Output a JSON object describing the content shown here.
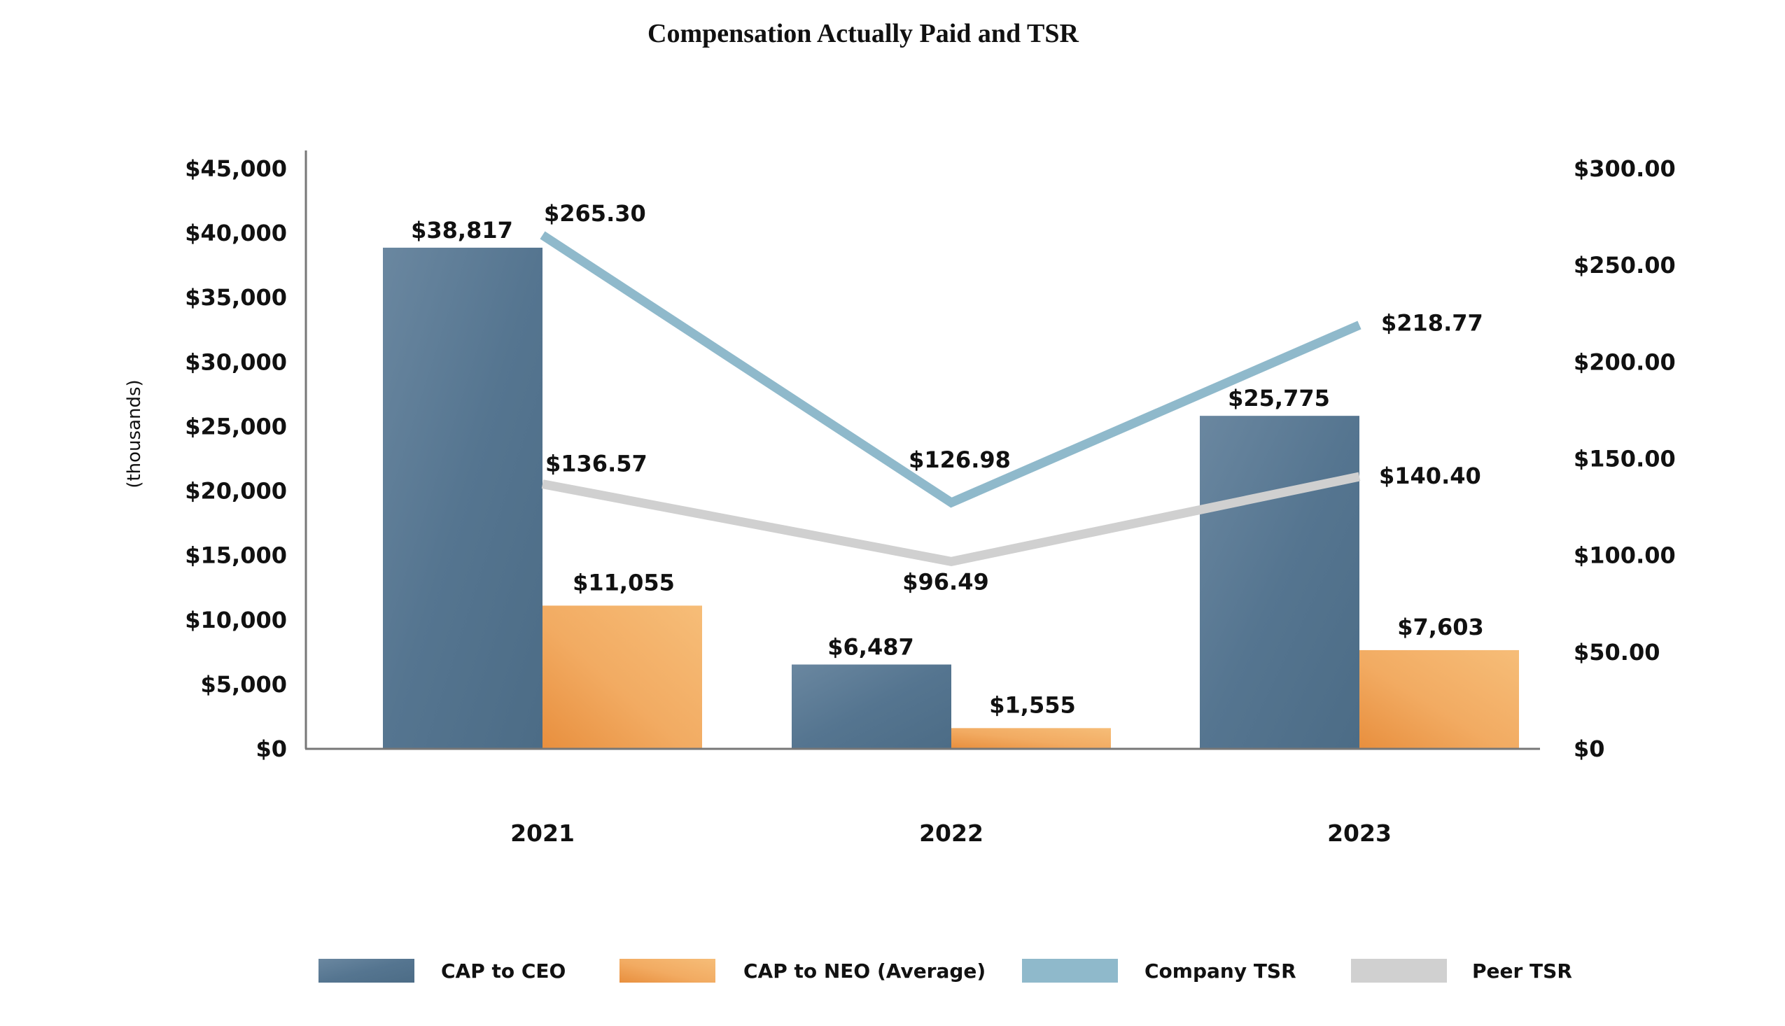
{
  "chart_data": {
    "type": "bar",
    "title": "Compensation Actually Paid and TSR",
    "xlabel": "",
    "ylabel": "(thousands)",
    "categories": [
      "2021",
      "2022",
      "2023"
    ],
    "ylim": [
      0,
      45000
    ],
    "y_ticks": [
      "$0",
      "$5,000",
      "$10,000",
      "$15,000",
      "$20,000",
      "$25,000",
      "$30,000",
      "$35,000",
      "$40,000",
      "$45,000"
    ],
    "y_tick_values": [
      0,
      5000,
      10000,
      15000,
      20000,
      25000,
      30000,
      35000,
      40000,
      45000
    ],
    "y2lim": [
      0,
      300
    ],
    "y2_ticks": [
      "$0",
      "$50.00",
      "$100.00",
      "$150.00",
      "$200.00",
      "$250.00",
      "$300.00"
    ],
    "y2_tick_values": [
      0,
      50,
      100,
      150,
      200,
      250,
      300
    ],
    "grid": false,
    "legend_position": "bottom",
    "series": [
      {
        "name": "CAP to CEO",
        "type": "bar",
        "axis": "left",
        "color": "#5a7690",
        "values": [
          38817,
          6487,
          25775
        ],
        "labels": [
          "$38,817",
          "$6,487",
          "$25,775"
        ]
      },
      {
        "name": "CAP to NEO (Average)",
        "type": "bar",
        "axis": "left",
        "color": "#f2ab62",
        "values": [
          11055,
          1555,
          7603
        ],
        "labels": [
          "$11,055",
          "$1,555",
          "$7,603"
        ]
      },
      {
        "name": "Company TSR",
        "type": "line",
        "axis": "right",
        "color": "#8fb9cb",
        "values": [
          265.3,
          126.98,
          218.77
        ],
        "labels": [
          "$265.30",
          "$126.98",
          "$218.77"
        ]
      },
      {
        "name": "Peer TSR",
        "type": "line",
        "axis": "right",
        "color": "#d0d0d0",
        "values": [
          136.57,
          96.49,
          140.4
        ],
        "labels": [
          "$136.57",
          "$96.49",
          "$140.40"
        ]
      }
    ]
  }
}
